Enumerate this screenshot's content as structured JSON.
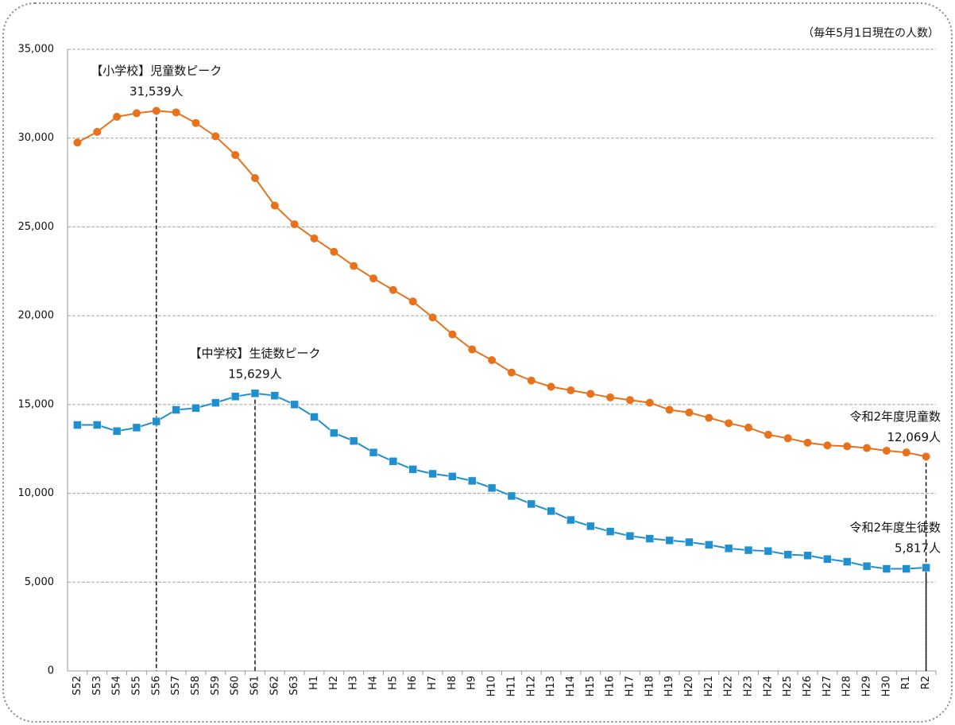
{
  "chart_data": {
    "type": "line",
    "note": "（毎年5月1日現在の人数）",
    "categories": [
      "S52",
      "S53",
      "S54",
      "S55",
      "S56",
      "S57",
      "S58",
      "S59",
      "S60",
      "S61",
      "S62",
      "S63",
      "H1",
      "H2",
      "H3",
      "H4",
      "H5",
      "H6",
      "H7",
      "H8",
      "H9",
      "H10",
      "H11",
      "H12",
      "H13",
      "H14",
      "H15",
      "H16",
      "H17",
      "H18",
      "H19",
      "H20",
      "H21",
      "H22",
      "H23",
      "H24",
      "H25",
      "H26",
      "H27",
      "H28",
      "H29",
      "H30",
      "R1",
      "R2"
    ],
    "series": [
      {
        "color": "#e8711b",
        "marker": "circle",
        "values": [
          29750,
          30350,
          31200,
          31400,
          31539,
          31450,
          30850,
          30100,
          29050,
          27750,
          26200,
          25150,
          24350,
          23600,
          22800,
          22100,
          21450,
          20800,
          19900,
          18950,
          18100,
          17500,
          16800,
          16350,
          16000,
          15800,
          15600,
          15400,
          15250,
          15100,
          14700,
          14550,
          14250,
          13950,
          13700,
          13300,
          13100,
          12850,
          12700,
          12650,
          12550,
          12400,
          12300,
          12069
        ],
        "value_labels": [
          null,
          null,
          null,
          null,
          "31,539人",
          null,
          null,
          null,
          null,
          null,
          null,
          null,
          null,
          null,
          null,
          null,
          null,
          null,
          null,
          null,
          null,
          null,
          null,
          null,
          null,
          null,
          null,
          null,
          null,
          null,
          null,
          null,
          null,
          null,
          null,
          null,
          null,
          null,
          null,
          null,
          null,
          null,
          null,
          "12,069人"
        ],
        "value_notes": [
          null,
          null,
          null,
          null,
          "【小学校】児童数ピーク",
          null,
          null,
          null,
          null,
          null,
          null,
          null,
          null,
          null,
          null,
          null,
          null,
          null,
          null,
          null,
          null,
          null,
          null,
          null,
          null,
          null,
          null,
          null,
          null,
          null,
          null,
          null,
          null,
          null,
          null,
          null,
          null,
          null,
          null,
          null,
          null,
          null,
          null,
          "令和2年度児童数"
        ]
      },
      {
        "color": "#1f8fcf",
        "marker": "square",
        "values": [
          13850,
          13850,
          13500,
          13700,
          14050,
          14700,
          14800,
          15100,
          15450,
          15629,
          15500,
          15000,
          14300,
          13400,
          12950,
          12300,
          11800,
          11350,
          11100,
          10950,
          10700,
          10300,
          9850,
          9400,
          9000,
          8500,
          8150,
          7850,
          7600,
          7450,
          7350,
          7250,
          7100,
          6900,
          6800,
          6750,
          6550,
          6500,
          6300,
          6150,
          5900,
          5750,
          5750,
          5817
        ],
        "value_labels": [
          null,
          null,
          null,
          null,
          null,
          null,
          null,
          null,
          null,
          "15,629人",
          null,
          null,
          null,
          null,
          null,
          null,
          null,
          null,
          null,
          null,
          null,
          null,
          null,
          null,
          null,
          null,
          null,
          null,
          null,
          null,
          null,
          null,
          null,
          null,
          null,
          null,
          null,
          null,
          null,
          null,
          null,
          null,
          null,
          "5,817人"
        ],
        "value_notes": [
          null,
          null,
          null,
          null,
          null,
          null,
          null,
          null,
          null,
          "【中学校】生徒数ピーク",
          null,
          null,
          null,
          null,
          null,
          null,
          null,
          null,
          null,
          null,
          null,
          null,
          null,
          null,
          null,
          null,
          null,
          null,
          null,
          null,
          null,
          null,
          null,
          null,
          null,
          null,
          null,
          null,
          null,
          null,
          null,
          null,
          null,
          "令和2年度生徒数"
        ]
      }
    ],
    "ylim": [
      0,
      35000
    ],
    "yticks": [
      0,
      {
        "value": 5000,
        "label": "5,000"
      },
      {
        "value": 10000,
        "label": "10,000"
      },
      {
        "value": 15000,
        "label": "15,000"
      },
      {
        "value": 20000,
        "label": "20,000"
      },
      {
        "value": 25000,
        "label": "25,000"
      },
      {
        "value": 30000,
        "label": "30,000"
      },
      {
        "value": 35000,
        "label": "35,000"
      }
    ],
    "grid": true
  }
}
